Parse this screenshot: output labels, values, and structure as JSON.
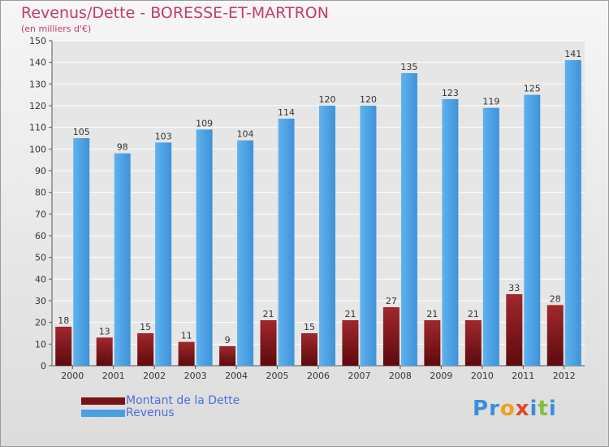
{
  "header": {
    "title": "Revenus/Dette - BORESSE-ET-MARTRON",
    "subtitle": "(en milliers d'€)"
  },
  "colors": {
    "dette": "#7a1216",
    "revenus": "#4a9fe2",
    "title": "#c33a6b",
    "legend_text": "#4a6fe0"
  },
  "chart_data": {
    "type": "bar",
    "title": "Revenus/Dette - BORESSE-ET-MARTRON",
    "subtitle": "(en milliers d'€)",
    "categories": [
      "2000",
      "2001",
      "2002",
      "2003",
      "2004",
      "2005",
      "2006",
      "2007",
      "2008",
      "2009",
      "2010",
      "2011",
      "2012"
    ],
    "series": [
      {
        "name": "Montant de la Dette",
        "values": [
          18,
          13,
          15,
          11,
          9,
          21,
          15,
          21,
          27,
          21,
          21,
          33,
          28
        ]
      },
      {
        "name": "Revenus",
        "values": [
          105,
          98,
          103,
          109,
          104,
          114,
          120,
          120,
          135,
          123,
          119,
          125,
          141
        ]
      }
    ],
    "yticks": [
      0,
      10,
      20,
      30,
      40,
      50,
      60,
      70,
      80,
      90,
      100,
      110,
      120,
      130,
      140,
      150
    ],
    "ylim": [
      0,
      150
    ],
    "grid": true,
    "legend": "bottom-left"
  },
  "legend": {
    "items": [
      {
        "label": "Montant de la Dette",
        "color": "#7a1216"
      },
      {
        "label": "Revenus",
        "color": "#4a9fe2"
      }
    ]
  },
  "logo": {
    "letters": [
      "P",
      "r",
      "o",
      "x",
      "i",
      "t",
      "i"
    ]
  }
}
